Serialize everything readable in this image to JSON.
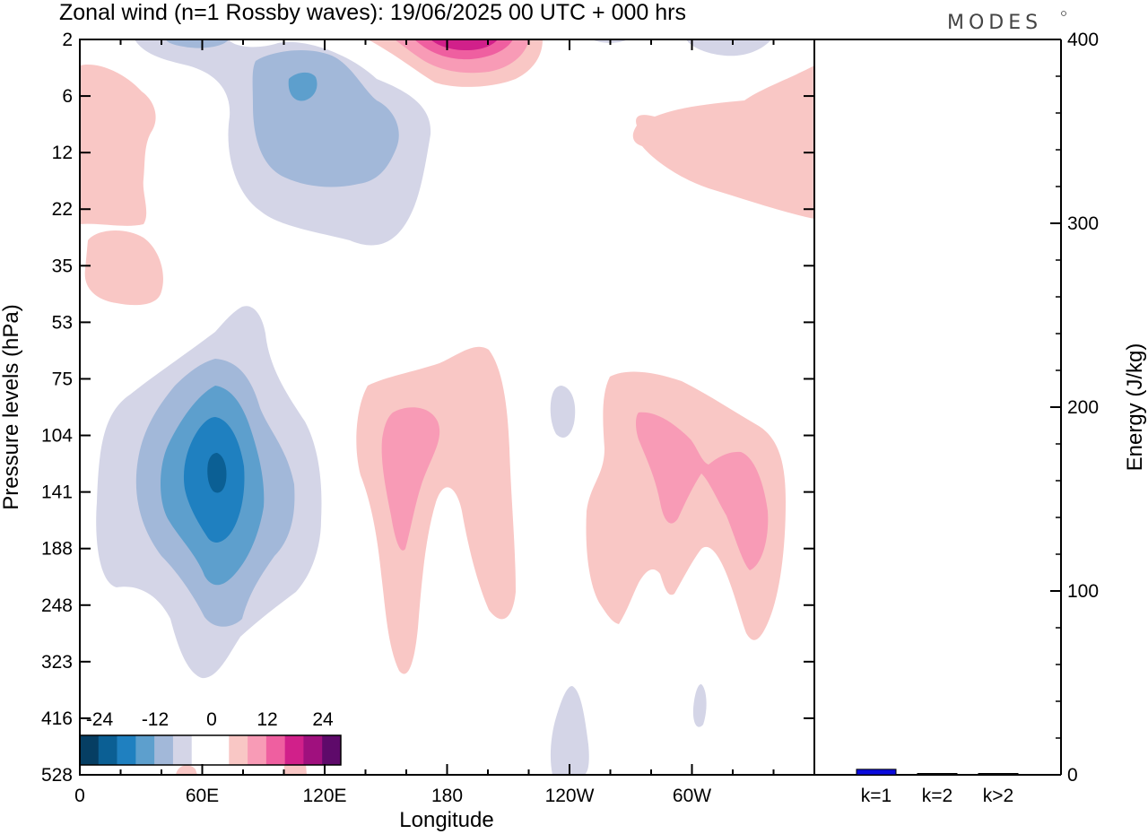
{
  "title": "Zonal wind (n=1 Rossby waves):  19/06/2025  00 UTC  + 000 hrs",
  "logo": "MODES",
  "colors": {
    "neg": [
      "#063e63",
      "#0b5f94",
      "#1f80c0",
      "#5d9fcd",
      "#a2b8d9",
      "#d4d5e7"
    ],
    "zero": "#ffffff",
    "pos": [
      "#f9c7c5",
      "#f89bb6",
      "#ef5fa0",
      "#d1208a",
      "#a0107e",
      "#5e0a6a"
    ],
    "bar": "#0a0adc"
  },
  "chart_data": [
    {
      "type": "heatmap",
      "variable": "Zonal wind (n=1 Rossby waves)",
      "xlabel": "Longitude",
      "ylabel": "Pressure levels (hPa)",
      "x_ticks": [
        "0",
        "60E",
        "120E",
        "180",
        "120W",
        "60W"
      ],
      "y_ticks": [
        "2",
        "6",
        "12",
        "22",
        "35",
        "53",
        "75",
        "104",
        "141",
        "188",
        "248",
        "323",
        "416",
        "528"
      ],
      "colorbar_labels": [
        "-24",
        "-12",
        "0",
        "12",
        "24"
      ],
      "features": [
        {
          "lon": 65,
          "level": "141",
          "sign": "negative",
          "peak": -24
        },
        {
          "lon": 160,
          "level": "141",
          "sign": "positive",
          "peak": 10
        },
        {
          "lon": 270,
          "level": "141",
          "sign": "positive",
          "peak": 10
        },
        {
          "lon": 185,
          "level": "2",
          "sign": "positive",
          "peak": 18
        },
        {
          "lon": 105,
          "level": "6",
          "sign": "negative",
          "peak": -12
        },
        {
          "lon": 340,
          "level": "12",
          "sign": "positive",
          "peak": 6
        },
        {
          "lon": 15,
          "level": "12",
          "sign": "positive",
          "peak": 6
        }
      ]
    },
    {
      "type": "bar",
      "categories": [
        "k=1",
        "k=2",
        "k>2"
      ],
      "values": [
        3,
        0.5,
        0.5
      ],
      "ylabel": "Energy (J/kg)",
      "ylim": [
        0,
        400
      ],
      "y_ticks": [
        "0",
        "100",
        "200",
        "300",
        "400"
      ]
    }
  ]
}
